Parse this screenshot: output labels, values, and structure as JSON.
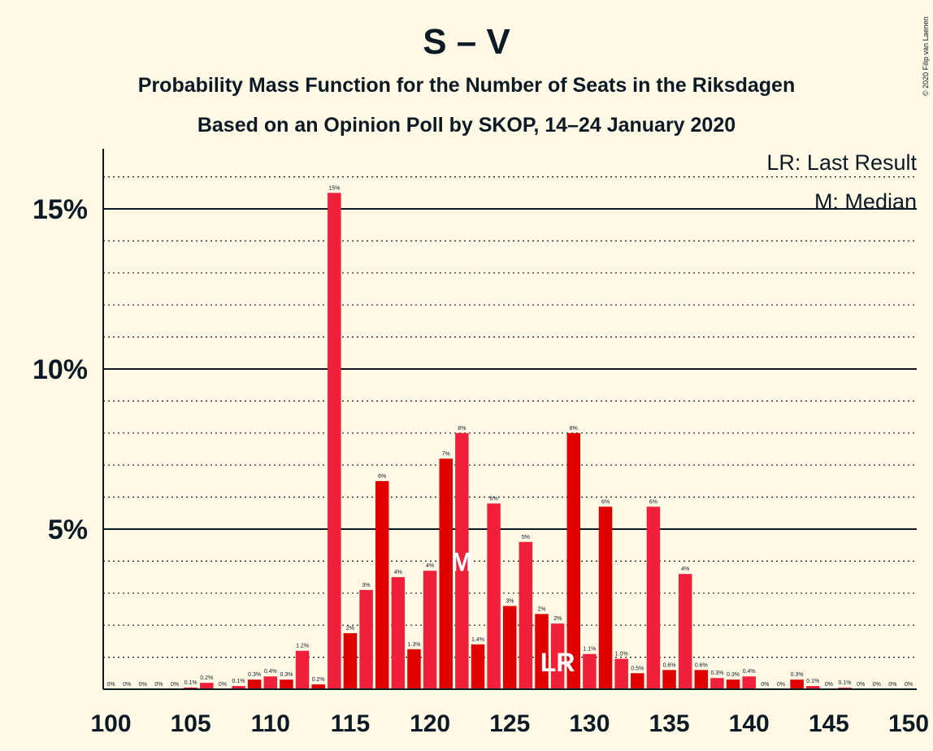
{
  "title": "S – V",
  "subtitle1": "Probability Mass Function for the Number of Seats in the Riksdagen",
  "subtitle2": "Based on an Opinion Poll by SKOP, 14–24 January 2020",
  "copyright": "© 2020 Filip van Laenen",
  "legend": {
    "lr": "LR: Last Result",
    "m": "M: Median"
  },
  "colors": {
    "bar_light": "#F0203A",
    "bar_dark": "#E00000",
    "background": "#FFF9E6",
    "text": "#0C1A26"
  },
  "chart_data": {
    "type": "bar",
    "x": [
      100,
      101,
      102,
      103,
      104,
      105,
      106,
      107,
      108,
      109,
      110,
      111,
      112,
      113,
      114,
      115,
      116,
      117,
      118,
      119,
      120,
      121,
      122,
      123,
      124,
      125,
      126,
      127,
      128,
      129,
      130,
      131,
      132,
      133,
      134,
      135,
      136,
      137,
      138,
      139,
      140,
      141,
      142,
      143,
      144,
      145,
      146,
      147,
      148,
      149,
      150
    ],
    "values": [
      0,
      0,
      0,
      0,
      0,
      0.05,
      0.2,
      0,
      0.1,
      0.3,
      0.4,
      0.3,
      1.2,
      0.15,
      15.5,
      1.75,
      3.1,
      6.5,
      3.5,
      1.25,
      3.7,
      7.2,
      8.0,
      1.4,
      5.8,
      2.6,
      4.6,
      2.35,
      2.05,
      8.0,
      1.1,
      5.7,
      0.95,
      0.5,
      5.7,
      0.6,
      3.6,
      0.6,
      0.35,
      0.3,
      0.4,
      0,
      0,
      0.3,
      0.1,
      0,
      0.05,
      0,
      0,
      0,
      0
    ],
    "labels": [
      "0%",
      "0%",
      "0%",
      "0%",
      "0%",
      "0.1%",
      "0.2%",
      "0%",
      "0.1%",
      "0.3%",
      "0.4%",
      "0.3%",
      "1.2%",
      "0.2%",
      "15%",
      "2%",
      "3%",
      "6%",
      "4%",
      "1.3%",
      "4%",
      "7%",
      "8%",
      "1.4%",
      "6%",
      "3%",
      "5%",
      "2%",
      "2%",
      "8%",
      "1.1%",
      "6%",
      "1.0%",
      "0.5%",
      "6%",
      "0.6%",
      "4%",
      "0.6%",
      "0.3%",
      "0.3%",
      "0.4%",
      "0%",
      "0%",
      "0.3%",
      "0.1%",
      "0%",
      "0.1%",
      "0%",
      "0%",
      "0%",
      "0%"
    ],
    "x_ticks": [
      "100",
      "105",
      "110",
      "115",
      "120",
      "125",
      "130",
      "135",
      "140",
      "145",
      "150"
    ],
    "y_ticks": [
      "5%",
      "10%",
      "15%"
    ],
    "y_tick_values": [
      5,
      10,
      15
    ],
    "ylim": [
      0,
      16.9
    ],
    "median": {
      "seat": 122,
      "label": "M"
    },
    "last_result": {
      "seat": 128,
      "label": "LR"
    },
    "legend_position": "top-right"
  }
}
